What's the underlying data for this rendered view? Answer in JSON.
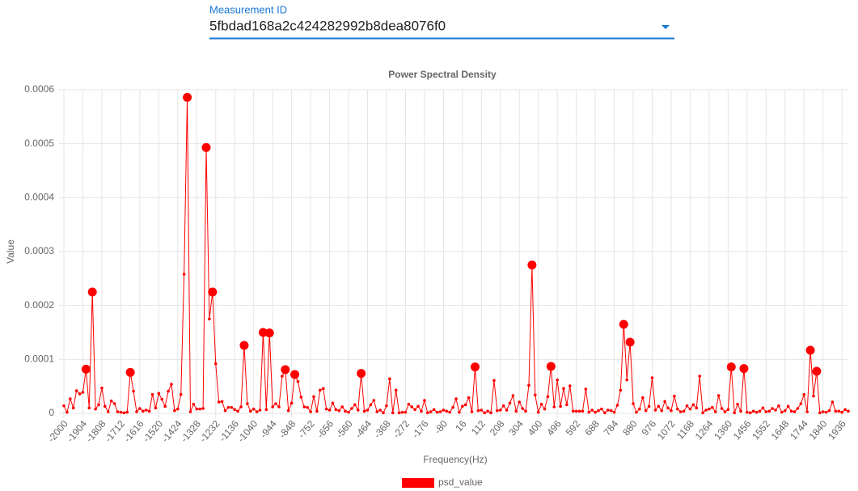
{
  "form": {
    "label": "Measurement ID",
    "value": "5fbdad168a2c424282992b8dea8076f0"
  },
  "chart_data": {
    "type": "line",
    "title": "Power Spectral Density",
    "xlabel": "Frequency(Hz)",
    "ylabel": "Value",
    "x": [
      -2000,
      -1984,
      -1968,
      -1952,
      -1936,
      -1920,
      -1904,
      -1888,
      -1872,
      -1856,
      -1840,
      -1824,
      -1808,
      -1792,
      -1776,
      -1760,
      -1744,
      -1728,
      -1712,
      -1696,
      -1680,
      -1664,
      -1648,
      -1632,
      -1616,
      -1600,
      -1584,
      -1568,
      -1552,
      -1536,
      -1520,
      -1504,
      -1488,
      -1472,
      -1456,
      -1440,
      -1424,
      -1408,
      -1392,
      -1376,
      -1360,
      -1344,
      -1328,
      -1312,
      -1296,
      -1280,
      -1264,
      -1248,
      -1232,
      -1216,
      -1200,
      -1184,
      -1168,
      -1152,
      -1136,
      -1120,
      -1104,
      -1088,
      -1072,
      -1056,
      -1040,
      -1024,
      -1008,
      -992,
      -976,
      -960,
      -944,
      -928,
      -912,
      -896,
      -880,
      -864,
      -848,
      -832,
      -816,
      -800,
      -784,
      -768,
      -752,
      -736,
      -720,
      -704,
      -688,
      -672,
      -656,
      -640,
      -624,
      -608,
      -592,
      -576,
      -560,
      -544,
      -528,
      -512,
      -496,
      -480,
      -464,
      -448,
      -432,
      -416,
      -400,
      -384,
      -368,
      -352,
      -336,
      -320,
      -304,
      -288,
      -272,
      -256,
      -240,
      -224,
      -208,
      -192,
      -176,
      -160,
      -144,
      -128,
      -112,
      -96,
      -80,
      -64,
      -48,
      -32,
      -16,
      0,
      16,
      32,
      48,
      64,
      80,
      96,
      112,
      128,
      144,
      160,
      176,
      192,
      208,
      224,
      240,
      256,
      272,
      288,
      304,
      320,
      336,
      352,
      368,
      384,
      400,
      416,
      432,
      448,
      464,
      480,
      496,
      512,
      528,
      544,
      560,
      576,
      592,
      608,
      624,
      640,
      656,
      672,
      688,
      704,
      720,
      736,
      752,
      768,
      784,
      800,
      816,
      832,
      848,
      864,
      880,
      896,
      912,
      928,
      944,
      960,
      976,
      992,
      1008,
      1024,
      1040,
      1056,
      1072,
      1088,
      1104,
      1120,
      1136,
      1152,
      1168,
      1184,
      1200,
      1216,
      1232,
      1248,
      1264,
      1280,
      1296,
      1312,
      1328,
      1344,
      1360,
      1376,
      1392,
      1408,
      1424,
      1440,
      1456,
      1472,
      1488,
      1504,
      1520,
      1536,
      1552,
      1568,
      1584,
      1600,
      1616,
      1632,
      1648,
      1664,
      1680,
      1696,
      1712,
      1728,
      1744,
      1760,
      1776,
      1792,
      1808,
      1824,
      1840,
      1856,
      1872,
      1888,
      1904,
      1920,
      1936,
      1952,
      1968
    ],
    "series": [
      {
        "name": "psd_value",
        "color": "#ff0000",
        "values": [
          1.4e-05,
          2e-06,
          2.7e-05,
          1e-05,
          4.2e-05,
          3.6e-05,
          3.9e-05,
          8.2e-05,
          1e-05,
          0.000225,
          8e-06,
          1.6e-05,
          4.7e-05,
          1.3e-05,
          3e-06,
          2.3e-05,
          1.8e-05,
          3e-06,
          2e-06,
          1e-06,
          2e-06,
          7.6e-05,
          4.1e-05,
          3e-06,
          9e-06,
          4e-06,
          6e-06,
          4e-06,
          3.5e-05,
          1e-05,
          3.7e-05,
          2.6e-05,
          1.3e-05,
          4.1e-05,
          5.4e-05,
          5e-06,
          8e-06,
          3.5e-05,
          0.000258,
          0.000586,
          3e-06,
          1.7e-05,
          8e-06,
          8e-06,
          9e-06,
          0.000493,
          0.000175,
          0.000225,
          9.2e-05,
          2.1e-05,
          2.2e-05,
          5e-06,
          1.1e-05,
          1.1e-05,
          7e-06,
          4e-06,
          1.2e-05,
          0.000126,
          1.8e-05,
          4e-06,
          8e-06,
          3e-06,
          6e-06,
          0.00015,
          7e-06,
          0.000149,
          1.2e-05,
          1.8e-05,
          1.2e-05,
          6.9e-05,
          8.1e-05,
          5e-06,
          1.9e-05,
          7.2e-05,
          5.9e-05,
          3e-05,
          1.2e-05,
          1.1e-05,
          3e-06,
          3.1e-05,
          4e-06,
          4.3e-05,
          4.6e-05,
          8e-06,
          6e-06,
          1.9e-05,
          7e-06,
          5e-06,
          1.2e-05,
          4e-06,
          2e-06,
          9e-06,
          1.6e-05,
          6e-06,
          7.4e-05,
          4e-06,
          6e-06,
          1.6e-05,
          2.4e-05,
          3e-06,
          6e-06,
          1e-06,
          1.4e-05,
          6.4e-05,
          1e-06,
          4.3e-05,
          1e-06,
          2e-06,
          2e-06,
          1.7e-05,
          1.2e-05,
          7e-06,
          1.3e-05,
          4e-06,
          2.4e-05,
          1e-06,
          3e-06,
          7e-06,
          2e-06,
          3e-06,
          6e-06,
          4e-06,
          2e-06,
          1.1e-05,
          2.7e-05,
          2e-06,
          1.3e-05,
          1.6e-05,
          2.9e-05,
          3e-06,
          8.6e-05,
          5e-06,
          6e-06,
          1e-06,
          4e-06,
          1e-06,
          6.1e-05,
          5e-06,
          6e-06,
          1.4e-05,
          6e-06,
          1.9e-05,
          3.3e-05,
          4e-06,
          2.1e-05,
          9e-06,
          4e-06,
          5.2e-05,
          0.000275,
          3.4e-05,
          2e-06,
          1.7e-05,
          8e-06,
          3.1e-05,
          8.7e-05,
          1.2e-05,
          6.2e-05,
          1.3e-05,
          4.6e-05,
          1.6e-05,
          5.1e-05,
          4e-06,
          4e-06,
          4e-06,
          4e-06,
          4.5e-05,
          2e-06,
          6e-06,
          2e-06,
          5e-06,
          8e-06,
          1e-06,
          6e-06,
          5e-06,
          2e-06,
          1.5e-05,
          4.3e-05,
          0.000165,
          6.2e-05,
          0.000132,
          1.8e-05,
          2e-06,
          8e-06,
          2.9e-05,
          5e-06,
          1.3e-05,
          6.6e-05,
          6e-06,
          1.3e-05,
          5e-06,
          2.2e-05,
          1e-05,
          5e-06,
          3.2e-05,
          8e-06,
          3e-06,
          4e-06,
          1.4e-05,
          8e-06,
          1.6e-05,
          1e-05,
          6.9e-05,
          1e-06,
          6e-06,
          8e-06,
          1.1e-05,
          3e-06,
          3.3e-05,
          9e-06,
          3e-06,
          7e-06,
          8.6e-05,
          1e-06,
          1.7e-05,
          4e-06,
          8.3e-05,
          2e-06,
          1e-06,
          4e-06,
          2e-06,
          4e-06,
          1e-05,
          3e-06,
          4e-06,
          9e-06,
          6e-06,
          1.4e-05,
          2e-06,
          5e-06,
          1.3e-05,
          4e-06,
          3e-06,
          9e-06,
          1.8e-05,
          3.5e-05,
          3e-06,
          0.000117,
          3.2e-05,
          7.8e-05,
          1e-06,
          3e-06,
          2e-06,
          5e-06,
          2.1e-05,
          4e-06,
          4e-06,
          2e-06,
          7e-06,
          4e-06
        ]
      }
    ],
    "xlim": [
      -2000,
      1968
    ],
    "xticks": [
      -2000,
      -1904,
      -1808,
      -1712,
      -1616,
      -1520,
      -1424,
      -1328,
      -1232,
      -1136,
      -1040,
      -944,
      -848,
      -752,
      -656,
      -560,
      -464,
      -368,
      -272,
      -176,
      -80,
      16,
      112,
      208,
      304,
      400,
      496,
      592,
      688,
      784,
      880,
      976,
      1072,
      1168,
      1264,
      1360,
      1456,
      1552,
      1648,
      1744,
      1840,
      1936
    ],
    "ylim": [
      0,
      0.0006
    ],
    "yticks": [
      0,
      0.0001,
      0.0002,
      0.0003,
      0.0004,
      0.0005,
      0.0006
    ],
    "grid": true
  }
}
